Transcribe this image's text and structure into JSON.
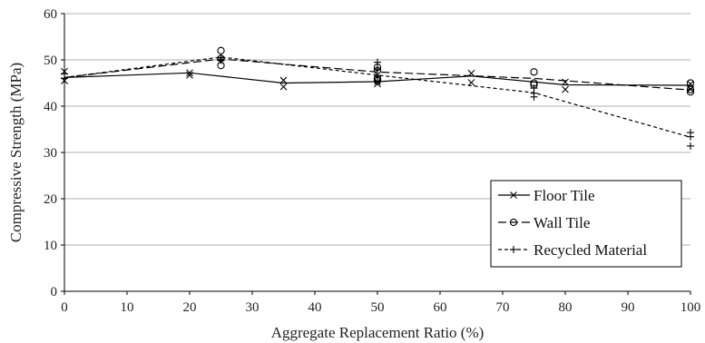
{
  "chart_data": {
    "type": "line",
    "title": "",
    "xlabel": "Aggregate Replacement Ratio (%)",
    "ylabel": "Compressive Strength (MPa)",
    "xlim": [
      0,
      100
    ],
    "ylim": [
      0,
      60
    ],
    "xticks": [
      0,
      10,
      20,
      30,
      40,
      50,
      60,
      70,
      80,
      90,
      100
    ],
    "yticks": [
      0,
      10,
      20,
      30,
      40,
      50,
      60
    ],
    "grid": "horizontal",
    "legend_position": "bottom-right",
    "series": [
      {
        "name": "Floor Tile",
        "marker": "x",
        "dash": "solid",
        "color": "#000000",
        "x": [
          0,
          20,
          35,
          50,
          65,
          80,
          100
        ],
        "y": [
          46.2,
          47.2,
          45.0,
          45.3,
          46.5,
          44.6,
          44.5
        ],
        "points": [
          [
            0,
            47.5
          ],
          [
            0,
            45.5
          ],
          [
            20,
            47.2
          ],
          [
            20,
            46.7
          ],
          [
            35,
            45.6
          ],
          [
            35,
            44.2
          ],
          [
            50,
            45.3
          ],
          [
            50,
            44.8
          ],
          [
            65,
            47.1
          ],
          [
            65,
            45.1
          ],
          [
            80,
            45.2
          ],
          [
            80,
            43.6
          ],
          [
            100,
            44.8
          ],
          [
            100,
            43.7
          ]
        ]
      },
      {
        "name": "Wall Tile",
        "marker": "o",
        "dash": "dashed",
        "color": "#000000",
        "x": [
          0,
          25,
          50,
          75,
          100
        ],
        "y": [
          46.2,
          50.2,
          47.4,
          46.0,
          43.5
        ],
        "points": [
          [
            25,
            52.0
          ],
          [
            25,
            50.3
          ],
          [
            25,
            48.8
          ],
          [
            50,
            48.4
          ],
          [
            50,
            47.7
          ],
          [
            50,
            46.0
          ],
          [
            50,
            45.5
          ],
          [
            75,
            47.4
          ],
          [
            75,
            45.0
          ],
          [
            75,
            44.6
          ],
          [
            100,
            45.0
          ],
          [
            100,
            43.6
          ],
          [
            100,
            43.1
          ]
        ]
      },
      {
        "name": "Recycled Material",
        "marker": "+",
        "dash": "short-dash",
        "color": "#000000",
        "x": [
          0,
          25,
          50,
          75,
          100
        ],
        "y": [
          46.2,
          50.6,
          46.7,
          42.9,
          33.3
        ],
        "points": [
          [
            0,
            47.0
          ],
          [
            0,
            46.0
          ],
          [
            25,
            50.5
          ],
          [
            25,
            49.9
          ],
          [
            50,
            49.5
          ],
          [
            50,
            48.0
          ],
          [
            50,
            46.4
          ],
          [
            75,
            43.9
          ],
          [
            75,
            42.8
          ],
          [
            75,
            42.0
          ],
          [
            100,
            34.3
          ],
          [
            100,
            33.4
          ],
          [
            100,
            31.4
          ]
        ]
      }
    ]
  }
}
